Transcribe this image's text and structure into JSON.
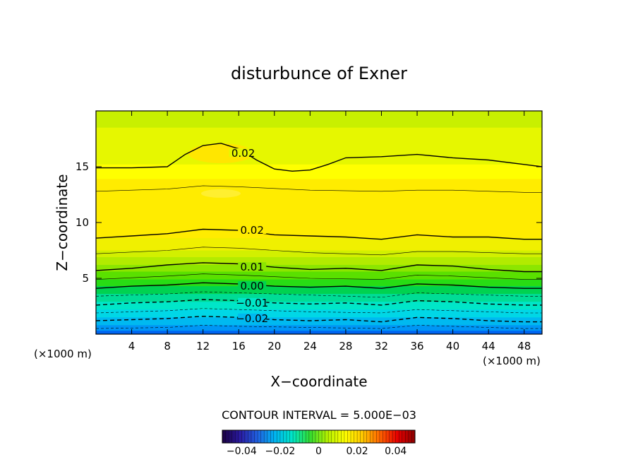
{
  "chart_data": {
    "type": "heatmap",
    "title": "disturbunce of Exner",
    "xlabel": "X−coordinate",
    "ylabel": "Z−coordinate",
    "x_unit_left": "(×1000 m)",
    "x_unit_right": "(×1000 m)",
    "xlim": [
      0,
      50
    ],
    "ylim": [
      0,
      20
    ],
    "x_ticks": [
      4,
      8,
      12,
      16,
      20,
      24,
      28,
      32,
      36,
      40,
      44,
      48
    ],
    "y_ticks": [
      5,
      10,
      15
    ],
    "contour_interval_text": "CONTOUR INTERVAL = 5.000E−03",
    "contours": [
      {
        "label": "0.02",
        "level": 0.02,
        "x": [
          0,
          4,
          8,
          10,
          12,
          14,
          16,
          18,
          20,
          22,
          24,
          26,
          28,
          32,
          36,
          40,
          44,
          48,
          50
        ],
        "z": [
          14.9,
          14.9,
          15.0,
          16.1,
          16.9,
          17.1,
          16.6,
          15.6,
          14.8,
          14.6,
          14.7,
          15.2,
          15.8,
          15.9,
          16.1,
          15.8,
          15.6,
          15.2,
          15.0
        ],
        "label_pos": [
          16.5,
          16.2
        ],
        "style": "solid"
      },
      {
        "label": "0.02",
        "level": 0.02,
        "x": [
          0,
          4,
          8,
          12,
          16,
          20,
          24,
          28,
          32,
          36,
          40,
          44,
          48,
          50
        ],
        "z": [
          8.6,
          8.8,
          9.0,
          9.4,
          9.3,
          8.9,
          8.8,
          8.7,
          8.5,
          8.9,
          8.7,
          8.7,
          8.5,
          8.5
        ],
        "label_pos": [
          17.5,
          9.3
        ],
        "style": "solid"
      },
      {
        "label": "0.01",
        "level": 0.01,
        "x": [
          0,
          4,
          8,
          12,
          16,
          20,
          24,
          28,
          32,
          36,
          40,
          44,
          48,
          50
        ],
        "z": [
          5.7,
          5.9,
          6.2,
          6.4,
          6.3,
          6.0,
          5.8,
          5.9,
          5.7,
          6.2,
          6.1,
          5.8,
          5.6,
          5.6
        ],
        "label_pos": [
          17.5,
          6.0
        ],
        "style": "solid"
      },
      {
        "label": "0.00",
        "level": 0.0,
        "x": [
          0,
          4,
          8,
          12,
          16,
          20,
          24,
          28,
          32,
          36,
          40,
          44,
          48,
          50
        ],
        "z": [
          4.1,
          4.3,
          4.4,
          4.6,
          4.5,
          4.3,
          4.2,
          4.3,
          4.1,
          4.5,
          4.4,
          4.2,
          4.1,
          4.1
        ],
        "label_pos": [
          17.5,
          4.3
        ],
        "style": "solid"
      },
      {
        "label": "−0.01",
        "level": -0.01,
        "x": [
          0,
          4,
          8,
          12,
          16,
          20,
          24,
          28,
          32,
          36,
          40,
          44,
          48,
          50
        ],
        "z": [
          2.6,
          2.8,
          2.9,
          3.1,
          3.0,
          2.8,
          2.7,
          2.8,
          2.6,
          3.0,
          2.9,
          2.7,
          2.6,
          2.6
        ],
        "label_pos": [
          17.5,
          2.8
        ],
        "style": "dashed"
      },
      {
        "label": "−0.02",
        "level": -0.02,
        "x": [
          0,
          4,
          8,
          12,
          16,
          20,
          24,
          28,
          32,
          36,
          40,
          44,
          48,
          50
        ],
        "z": [
          1.2,
          1.3,
          1.4,
          1.6,
          1.5,
          1.3,
          1.2,
          1.3,
          1.1,
          1.5,
          1.4,
          1.2,
          1.1,
          1.1
        ],
        "label_pos": [
          17.5,
          1.4
        ],
        "style": "dashed"
      }
    ],
    "thin_contours": [
      {
        "x": [
          0,
          8,
          12,
          16,
          24,
          32,
          36,
          40,
          48,
          50
        ],
        "z": [
          12.8,
          13.0,
          13.3,
          13.2,
          12.9,
          12.8,
          12.9,
          12.9,
          12.7,
          12.7
        ]
      },
      {
        "x": [
          0,
          8,
          12,
          16,
          24,
          32,
          36,
          40,
          48,
          50
        ],
        "z": [
          7.2,
          7.5,
          7.8,
          7.7,
          7.3,
          7.1,
          7.4,
          7.4,
          7.2,
          7.2
        ],
        "style": "solid"
      },
      {
        "x": [
          0,
          8,
          12,
          16,
          24,
          32,
          36,
          40,
          48,
          50
        ],
        "z": [
          4.9,
          5.2,
          5.4,
          5.3,
          5.0,
          4.9,
          5.3,
          5.2,
          4.9,
          4.9
        ],
        "style": "solid"
      },
      {
        "x": [
          0,
          8,
          12,
          16,
          24,
          32,
          36,
          40,
          48,
          50
        ],
        "z": [
          3.4,
          3.6,
          3.8,
          3.7,
          3.5,
          3.3,
          3.7,
          3.6,
          3.4,
          3.4
        ],
        "style": "dashed"
      },
      {
        "x": [
          0,
          8,
          12,
          16,
          24,
          32,
          36,
          40,
          48,
          50
        ],
        "z": [
          1.9,
          2.1,
          2.3,
          2.2,
          2.0,
          1.9,
          2.2,
          2.1,
          1.9,
          1.9
        ],
        "style": "dashed"
      },
      {
        "x": [
          0,
          8,
          12,
          16,
          24,
          32,
          36,
          40,
          48,
          50
        ],
        "z": [
          0.5,
          0.6,
          0.8,
          0.7,
          0.6,
          0.5,
          0.8,
          0.7,
          0.5,
          0.5
        ],
        "style": "dashed"
      }
    ],
    "fill_bands": [
      {
        "top": 20,
        "color": "#c8f000"
      },
      {
        "top": 18.5,
        "color": "#e6f700"
      },
      {
        "top": 15.2,
        "color": "#ffff00"
      },
      {
        "top": 13.9,
        "color": "#ffec00"
      },
      {
        "top": 9.7,
        "color": "#ffec00"
      },
      {
        "top": 8.6,
        "color": "#f0f000"
      },
      {
        "top": 7.5,
        "color": "#d2f000"
      },
      {
        "top": 6.9,
        "color": "#b2eb00"
      },
      {
        "top": 6.2,
        "color": "#8ce600"
      },
      {
        "top": 5.6,
        "color": "#5ae000"
      },
      {
        "top": 4.9,
        "color": "#28dc14"
      },
      {
        "top": 4.3,
        "color": "#00d250"
      },
      {
        "top": 3.6,
        "color": "#00dc96"
      },
      {
        "top": 2.9,
        "color": "#00e6c8"
      },
      {
        "top": 2.2,
        "color": "#00d7e6"
      },
      {
        "top": 1.5,
        "color": "#00b9f0"
      },
      {
        "top": 0.8,
        "color": "#0096f5"
      },
      {
        "top": 0.3,
        "color": "#0064f0"
      }
    ],
    "colorbar": {
      "range": [
        -0.05,
        0.05
      ],
      "ticks": [
        "−0.04",
        "−0.02",
        "0",
        "0.02",
        "0.04"
      ],
      "tick_values": [
        -0.04,
        -0.02,
        0,
        0.02,
        0.04
      ],
      "stops": [
        "#1a0040",
        "#2a1aa0",
        "#2060e0",
        "#00b4f0",
        "#00e6c8",
        "#32dc32",
        "#b4f000",
        "#ffff00",
        "#ffc800",
        "#ff6400",
        "#e60000",
        "#8c0000"
      ]
    },
    "grid": false
  }
}
